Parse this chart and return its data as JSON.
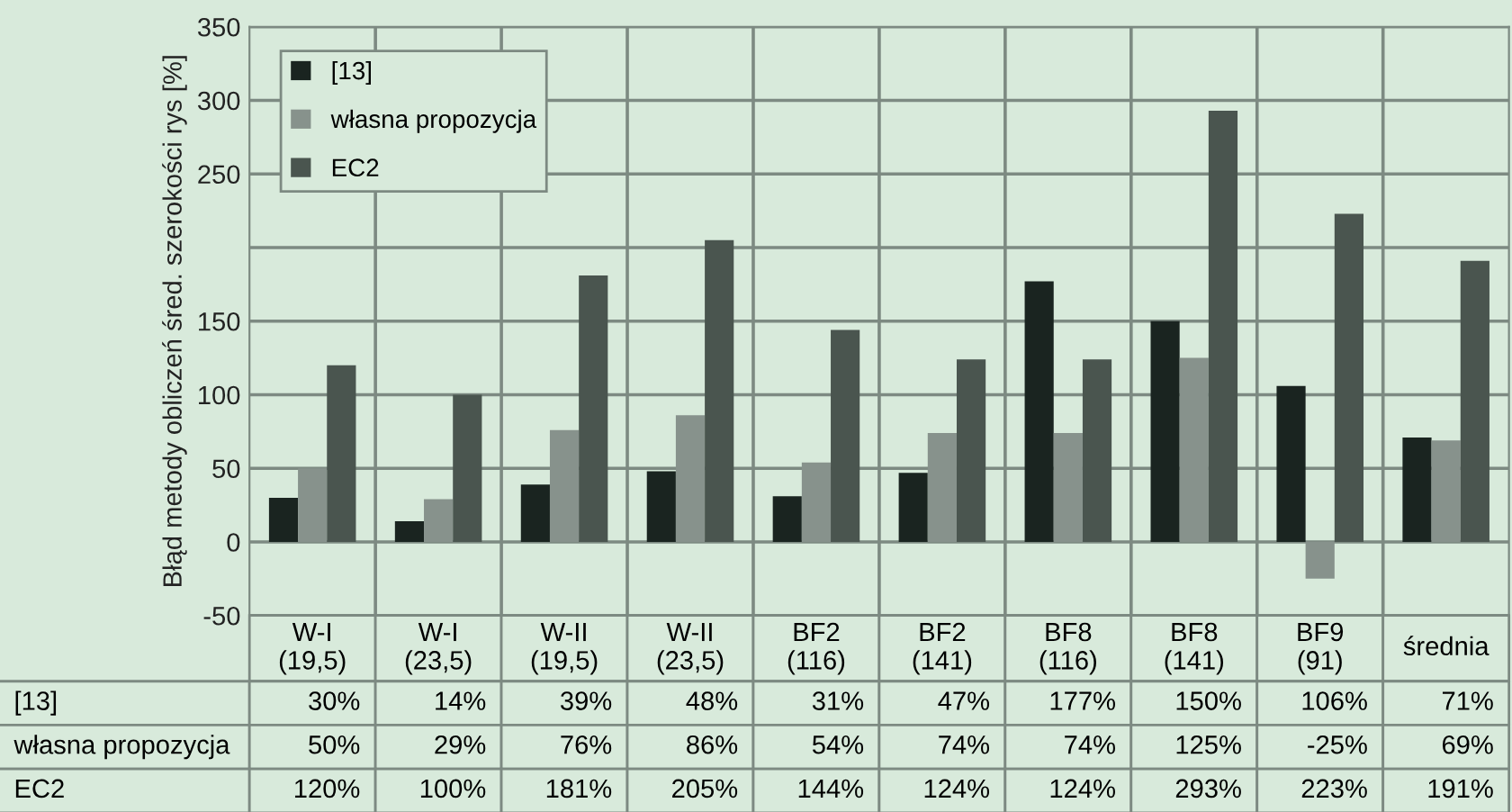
{
  "chart_data": {
    "type": "bar",
    "ylabel": "Błąd metody obliczeń śred. szerokości rys [%]",
    "categories": [
      "W-I\n(19,5)",
      "W-I\n(23,5)",
      "W-II\n(19,5)",
      "W-II\n(23,5)",
      "BF2\n(116)",
      "BF2\n(141)",
      "BF8\n(116)",
      "BF8\n(141)",
      "BF9\n(91)",
      "średnia"
    ],
    "series": [
      {
        "name": "[13]",
        "color": "#1a2420",
        "values": [
          30,
          14,
          39,
          48,
          31,
          47,
          177,
          150,
          106,
          71
        ],
        "value_labels": [
          "30%",
          "14%",
          "39%",
          "48%",
          "31%",
          "47%",
          "177%",
          "150%",
          "106%",
          "71%"
        ]
      },
      {
        "name": "własna propozycja",
        "color": "#87928c",
        "values": [
          50,
          29,
          76,
          86,
          54,
          74,
          74,
          125,
          -25,
          69
        ],
        "value_labels": [
          "50%",
          "29%",
          "76%",
          "86%",
          "54%",
          "74%",
          "74%",
          "125%",
          "-25%",
          "69%"
        ]
      },
      {
        "name": "EC2",
        "color": "#4a554f",
        "values": [
          120,
          100,
          181,
          205,
          144,
          124,
          124,
          293,
          223,
          191
        ],
        "value_labels": [
          "120%",
          "100%",
          "181%",
          "205%",
          "144%",
          "124%",
          "124%",
          "293%",
          "223%",
          "191%"
        ]
      }
    ],
    "ylim": [
      -50,
      350
    ],
    "yticks": [
      -50,
      0,
      50,
      100,
      150,
      {
        "value": 200,
        "label": null
      },
      250,
      300,
      350
    ],
    "grid": true,
    "legend": "top left"
  }
}
